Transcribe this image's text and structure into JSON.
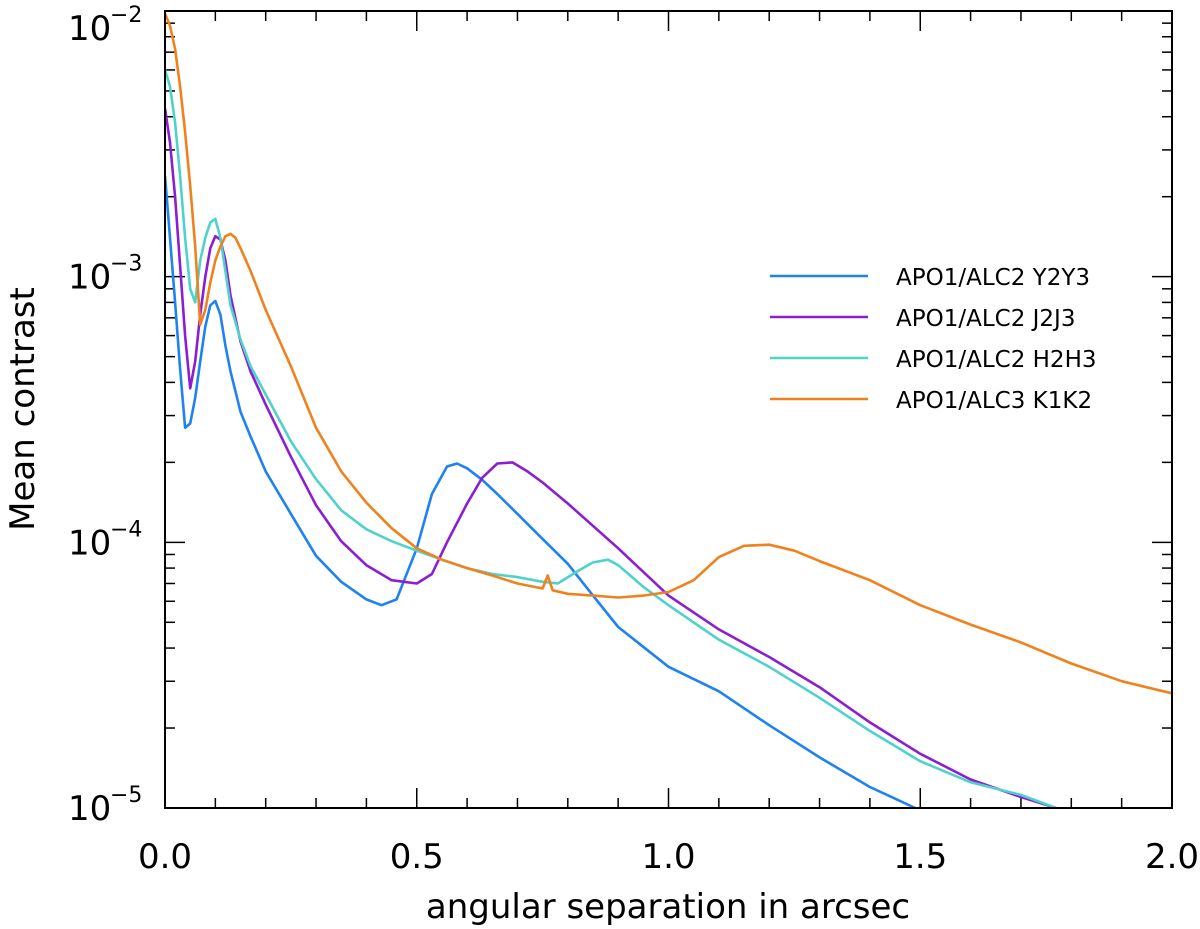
{
  "chart_data": {
    "type": "line",
    "title": "",
    "xlabel": "angular separation in arcsec",
    "ylabel": "Mean contrast",
    "xlim": [
      0.0,
      2.0
    ],
    "ylim": [
      1e-05,
      0.01
    ],
    "yscale": "log",
    "legend_position": "center-right",
    "x_ticks": [
      {
        "value": 0.0,
        "label": "0.0"
      },
      {
        "value": 0.5,
        "label": "0.5"
      },
      {
        "value": 1.0,
        "label": "1.0"
      },
      {
        "value": 1.5,
        "label": "1.5"
      },
      {
        "value": 2.0,
        "label": "2.0"
      }
    ],
    "y_ticks": [
      {
        "value": 1e-05,
        "base": "10",
        "exp": "−5"
      },
      {
        "value": 0.0001,
        "base": "10",
        "exp": "−4"
      },
      {
        "value": 0.001,
        "base": "10",
        "exp": "−3"
      },
      {
        "value": 0.01,
        "base": "10",
        "exp": "−2"
      }
    ],
    "series": [
      {
        "name": "APO1/ALC2 Y2Y3",
        "color": "#1e82f0",
        "x": [
          0.0,
          0.01,
          0.02,
          0.03,
          0.04,
          0.05,
          0.06,
          0.07,
          0.08,
          0.09,
          0.1,
          0.11,
          0.12,
          0.13,
          0.14,
          0.15,
          0.17,
          0.2,
          0.25,
          0.3,
          0.35,
          0.4,
          0.43,
          0.46,
          0.5,
          0.53,
          0.56,
          0.58,
          0.6,
          0.63,
          0.66,
          0.7,
          0.75,
          0.8,
          0.85,
          0.9,
          1.0,
          1.1,
          1.2,
          1.3,
          1.4,
          1.49
        ],
        "y": [
          0.0024,
          0.0014,
          0.0008,
          0.00045,
          0.00027,
          0.00028,
          0.00035,
          0.00048,
          0.00065,
          0.00078,
          0.00081,
          0.00072,
          0.00055,
          0.00044,
          0.00037,
          0.00031,
          0.00025,
          0.000185,
          0.000128,
          8.9e-05,
          7.1e-05,
          6.1e-05,
          5.8e-05,
          6.1e-05,
          9.5e-05,
          0.000152,
          0.000193,
          0.000198,
          0.00019,
          0.000172,
          0.000152,
          0.000128,
          0.000103,
          8.3e-05,
          6.3e-05,
          4.8e-05,
          3.4e-05,
          2.75e-05,
          2.05e-05,
          1.55e-05,
          1.2e-05,
          1e-05
        ]
      },
      {
        "name": "APO1/ALC2 J2J3",
        "color": "#8c1ed2",
        "x": [
          0.0,
          0.01,
          0.02,
          0.03,
          0.04,
          0.05,
          0.06,
          0.07,
          0.08,
          0.09,
          0.1,
          0.11,
          0.12,
          0.13,
          0.15,
          0.17,
          0.2,
          0.25,
          0.3,
          0.35,
          0.4,
          0.45,
          0.5,
          0.53,
          0.56,
          0.6,
          0.63,
          0.66,
          0.69,
          0.72,
          0.75,
          0.8,
          0.9,
          1.0,
          1.1,
          1.2,
          1.3,
          1.4,
          1.5,
          1.6,
          1.7,
          1.77
        ],
        "y": [
          0.0043,
          0.0032,
          0.002,
          0.0011,
          0.0006,
          0.00038,
          0.00048,
          0.00072,
          0.001,
          0.00128,
          0.00142,
          0.00138,
          0.00115,
          0.00085,
          0.00057,
          0.00044,
          0.00033,
          0.00021,
          0.000138,
          0.000101,
          8.2e-05,
          7.2e-05,
          7e-05,
          7.6e-05,
          0.0001,
          0.00014,
          0.000175,
          0.000198,
          0.0002,
          0.000185,
          0.000168,
          0.00014,
          9.5e-05,
          6.3e-05,
          4.7e-05,
          3.7e-05,
          2.85e-05,
          2.1e-05,
          1.6e-05,
          1.28e-05,
          1.1e-05,
          1e-05
        ]
      },
      {
        "name": "APO1/ALC2 H2H3",
        "color": "#4fd2cc",
        "x": [
          0.0,
          0.01,
          0.02,
          0.03,
          0.04,
          0.05,
          0.06,
          0.07,
          0.08,
          0.09,
          0.1,
          0.11,
          0.12,
          0.13,
          0.15,
          0.17,
          0.2,
          0.25,
          0.3,
          0.35,
          0.4,
          0.45,
          0.5,
          0.55,
          0.6,
          0.65,
          0.7,
          0.75,
          0.78,
          0.82,
          0.85,
          0.88,
          0.9,
          0.95,
          1.0,
          1.1,
          1.2,
          1.3,
          1.4,
          1.5,
          1.6,
          1.7,
          1.77
        ],
        "y": [
          0.006,
          0.0052,
          0.0038,
          0.0024,
          0.0014,
          0.0009,
          0.0008,
          0.00115,
          0.0014,
          0.0016,
          0.00165,
          0.0014,
          0.00105,
          0.00078,
          0.00058,
          0.00046,
          0.00036,
          0.00024,
          0.000173,
          0.000132,
          0.000112,
          0.000101,
          9.3e-05,
          8.6e-05,
          8e-05,
          7.6e-05,
          7.4e-05,
          7.1e-05,
          7e-05,
          7.8e-05,
          8.4e-05,
          8.6e-05,
          8.2e-05,
          6.8e-05,
          5.8e-05,
          4.3e-05,
          3.4e-05,
          2.6e-05,
          1.95e-05,
          1.5e-05,
          1.25e-05,
          1.12e-05,
          1e-05
        ]
      },
      {
        "name": "APO1/ALC3 K1K2",
        "color": "#f0821e",
        "x": [
          0.0,
          0.01,
          0.02,
          0.03,
          0.04,
          0.05,
          0.06,
          0.07,
          0.08,
          0.09,
          0.1,
          0.11,
          0.12,
          0.13,
          0.14,
          0.15,
          0.17,
          0.2,
          0.25,
          0.3,
          0.35,
          0.4,
          0.45,
          0.5,
          0.55,
          0.6,
          0.65,
          0.7,
          0.75,
          0.76,
          0.77,
          0.8,
          0.85,
          0.9,
          0.95,
          1.0,
          1.05,
          1.1,
          1.15,
          1.2,
          1.25,
          1.3,
          1.4,
          1.5,
          1.6,
          1.7,
          1.8,
          1.9,
          2.0
        ],
        "y": [
          0.0098,
          0.0088,
          0.0072,
          0.0052,
          0.0035,
          0.0022,
          0.0013,
          0.00066,
          0.00075,
          0.00095,
          0.00115,
          0.0013,
          0.00142,
          0.00145,
          0.0014,
          0.00128,
          0.00105,
          0.00075,
          0.00046,
          0.00027,
          0.000185,
          0.000141,
          0.000113,
          9.5e-05,
          8.6e-05,
          8e-05,
          7.5e-05,
          7e-05,
          6.7e-05,
          7.5e-05,
          6.6e-05,
          6.4e-05,
          6.3e-05,
          6.2e-05,
          6.3e-05,
          6.5e-05,
          7.2e-05,
          8.8e-05,
          9.7e-05,
          9.8e-05,
          9.3e-05,
          8.5e-05,
          7.2e-05,
          5.8e-05,
          4.9e-05,
          4.2e-05,
          3.5e-05,
          3e-05,
          2.7e-05
        ]
      }
    ]
  }
}
